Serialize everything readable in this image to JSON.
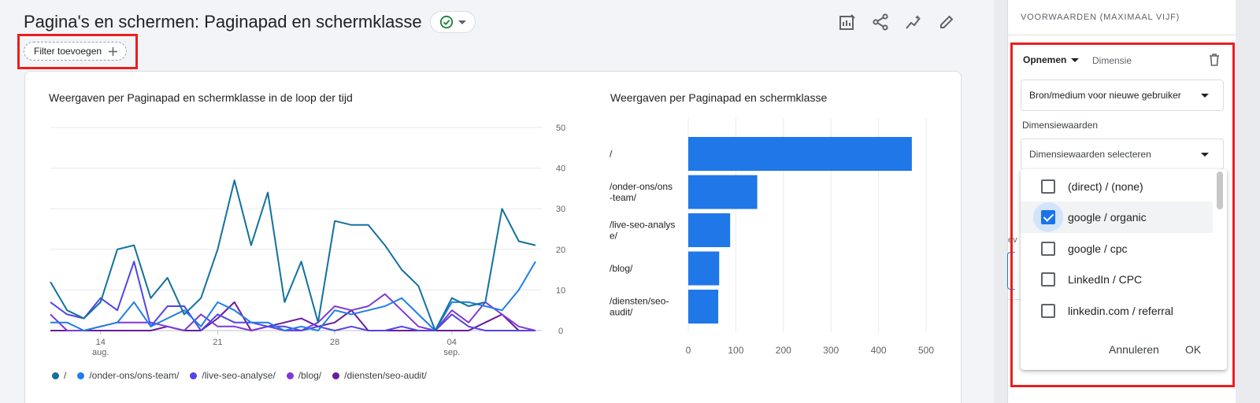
{
  "header": {
    "title": "Pagina's en schermen: Paginapad en schermklasse",
    "filter_chip_label": "Filter toevoegen"
  },
  "toolbar": {
    "icons": [
      "compare-icon",
      "share-icon",
      "insights-icon",
      "edit-icon"
    ]
  },
  "line_chart": {
    "title": "Weergaven per Paginapad en schermklasse in de loop der tijd",
    "y_ticks": [
      "50",
      "40",
      "30",
      "20",
      "10",
      "0"
    ],
    "x_ticks": [
      {
        "day": "14",
        "month": "aug."
      },
      {
        "day": "21",
        "month": ""
      },
      {
        "day": "28",
        "month": ""
      },
      {
        "day": "04",
        "month": "sep."
      }
    ],
    "legend": [
      {
        "label": "/",
        "color": "#12719e"
      },
      {
        "label": "/onder-ons/ons-team/",
        "color": "#1f7fe8"
      },
      {
        "label": "/live-seo-analyse/",
        "color": "#5145e8"
      },
      {
        "label": "/blog/",
        "color": "#7f3ad6"
      },
      {
        "label": "/diensten/seo-audit/",
        "color": "#6a1b9a"
      }
    ]
  },
  "bar_chart": {
    "title": "Weergaven per Paginapad en schermklasse",
    "category_labels": [
      [
        "/"
      ],
      [
        "/onder-ons/ons",
        "-team/"
      ],
      [
        "/live-seo-analys",
        "e/"
      ],
      [
        "/blog/"
      ],
      [
        "/diensten/seo-",
        "audit/"
      ]
    ],
    "x_ticks": [
      "0",
      "100",
      "200",
      "300",
      "400",
      "500"
    ]
  },
  "chart_data": [
    {
      "type": "line",
      "title": "Weergaven per Paginapad en schermklasse in de loop der tijd",
      "xlabel": "",
      "ylabel": "",
      "ylim": [
        0,
        50
      ],
      "x": [
        "11 aug",
        "12 aug",
        "13 aug",
        "14 aug",
        "15 aug",
        "16 aug",
        "17 aug",
        "18 aug",
        "19 aug",
        "20 aug",
        "21 aug",
        "22 aug",
        "23 aug",
        "24 aug",
        "25 aug",
        "26 aug",
        "27 aug",
        "28 aug",
        "29 aug",
        "30 aug",
        "31 aug",
        "1 sep",
        "2 sep",
        "3 sep",
        "4 sep",
        "5 sep",
        "6 sep",
        "7 sep",
        "8 sep",
        "9 sep"
      ],
      "x_tick_labels": [
        "14 aug.",
        "21",
        "28",
        "04 sep."
      ],
      "series": [
        {
          "name": "/",
          "color": "#12719e",
          "values": [
            12,
            5,
            3,
            7,
            20,
            21,
            8,
            13,
            4,
            8,
            20,
            37,
            21,
            34,
            7,
            17,
            2,
            27,
            26,
            26,
            21,
            15,
            11,
            0,
            8,
            6,
            7,
            30,
            22,
            21
          ]
        },
        {
          "name": "/onder-ons/ons-team/",
          "color": "#1f7fe8",
          "values": [
            2,
            2,
            0,
            1,
            2,
            7,
            1,
            3,
            5,
            1,
            7,
            5,
            2,
            2,
            0,
            1,
            0,
            5,
            4,
            5,
            6,
            8,
            4,
            0,
            7,
            7,
            6,
            5,
            10,
            17
          ]
        },
        {
          "name": "/live-seo-analyse/",
          "color": "#5145e8",
          "values": [
            7,
            4,
            3,
            8,
            5,
            17,
            1,
            6,
            6,
            0,
            4,
            2,
            2,
            1,
            1,
            0,
            1,
            0,
            1,
            0,
            0,
            1,
            0,
            0,
            4,
            1,
            0,
            0,
            0,
            0
          ]
        },
        {
          "name": "/blog/",
          "color": "#7f3ad6",
          "values": [
            4,
            0,
            0,
            1,
            2,
            2,
            2,
            1,
            0,
            4,
            1,
            1,
            0,
            1,
            0,
            0,
            2,
            6,
            5,
            6,
            9,
            5,
            1,
            0,
            5,
            2,
            7,
            4,
            1,
            0
          ]
        },
        {
          "name": "/diensten/seo-audit/",
          "color": "#6a1b9a",
          "values": [
            0,
            0,
            0,
            0,
            0,
            0,
            0,
            1,
            0,
            0,
            3,
            7,
            0,
            1,
            2,
            3,
            1,
            2,
            5,
            0,
            0,
            0,
            0,
            0,
            0,
            0,
            2,
            4,
            0,
            0
          ]
        }
      ]
    },
    {
      "type": "bar",
      "orientation": "horizontal",
      "title": "Weergaven per Paginapad en schermklasse",
      "categories": [
        "/",
        "/onder-ons/ons-team/",
        "/live-seo-analyse/",
        "/blog/",
        "/diensten/seo-audit/"
      ],
      "values": [
        470,
        145,
        88,
        65,
        63
      ],
      "xlim": [
        0,
        500
      ],
      "color": "#1f77e8"
    }
  ],
  "panel": {
    "heading": "VOORWAARDEN (MAXIMAAL VIJF)",
    "include_label": "Opnemen",
    "dimension_label": "Dimensie",
    "dimension_select": "Bron/medium voor nieuwe gebruiker",
    "values_label": "Dimensiewaarden",
    "values_placeholder": "Dimensiewaarden selecteren",
    "options": [
      {
        "label": "(direct) / (none)",
        "checked": false
      },
      {
        "label": "google / organic",
        "checked": true
      },
      {
        "label": "google / cpc",
        "checked": false
      },
      {
        "label": "LinkedIn / CPC",
        "checked": false
      },
      {
        "label": "linkedin.com / referral",
        "checked": false
      }
    ],
    "cancel_label": "Annuleren",
    "ok_label": "OK",
    "behind_text": "ev"
  },
  "colors": {
    "accent": "#1a73e8",
    "highlight": "#ea1f1f",
    "success": "#188038"
  }
}
